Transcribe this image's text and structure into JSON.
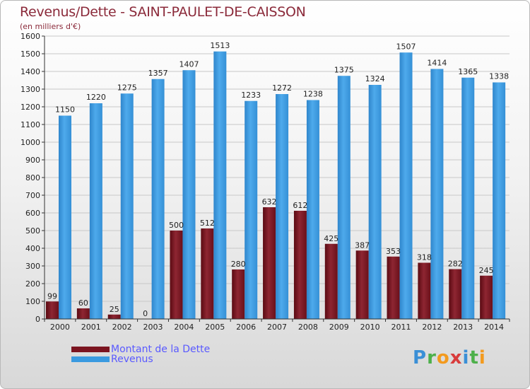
{
  "title": "Revenus/Dette - SAINT-PAULET-DE-CAISSON",
  "subtitle": "(en milliers d'€)",
  "logo": [
    "P",
    "r",
    "o",
    "x",
    "i",
    "t",
    "i"
  ],
  "logo_colors": [
    "#3a8fd6",
    "#4db04a",
    "#f39a1e",
    "#d83c3c",
    "#3a8fd6",
    "#4db04a",
    "#f39a1e"
  ],
  "colors": {
    "dette": "#7b1420",
    "revenus": "#3a9ae0",
    "axis": "#333333",
    "grid": "#c8c8c8"
  },
  "chart_data": {
    "type": "bar",
    "title": "Revenus/Dette - SAINT-PAULET-DE-CAISSON",
    "ylabel": "(en milliers d'€)",
    "xlabel": "",
    "ylim": [
      0,
      1600
    ],
    "yticks": [
      0,
      100,
      200,
      300,
      400,
      500,
      600,
      700,
      800,
      900,
      1000,
      1100,
      1200,
      1300,
      1400,
      1500,
      1600
    ],
    "grid": true,
    "legend": "bottom-left",
    "categories": [
      "2000",
      "2001",
      "2002",
      "2003",
      "2004",
      "2005",
      "2006",
      "2007",
      "2008",
      "2009",
      "2010",
      "2011",
      "2012",
      "2013",
      "2014"
    ],
    "series": [
      {
        "name": "Montant de la Dette",
        "values": [
          99,
          60,
          25,
          0,
          500,
          512,
          280,
          632,
          612,
          425,
          387,
          353,
          318,
          282,
          245
        ]
      },
      {
        "name": "Revenus",
        "values": [
          1150,
          1220,
          1275,
          1357,
          1407,
          1513,
          1233,
          1272,
          1238,
          1375,
          1324,
          1507,
          1414,
          1365,
          1338
        ]
      }
    ]
  }
}
